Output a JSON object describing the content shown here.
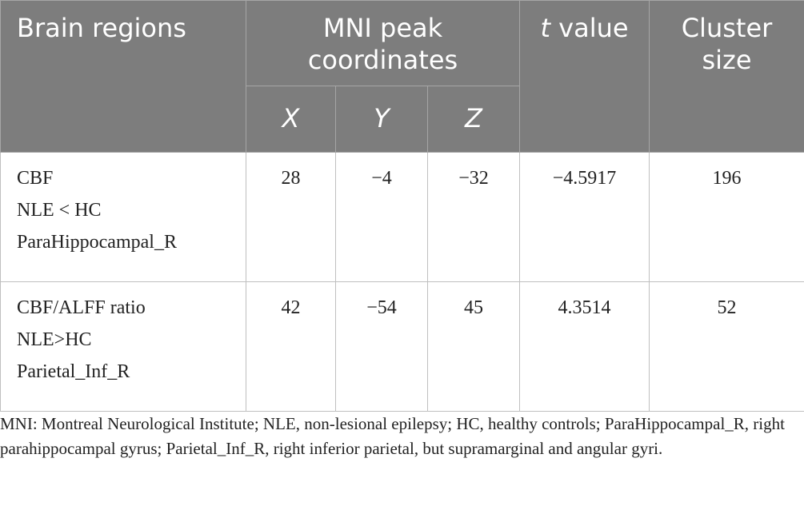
{
  "table": {
    "headers": {
      "brain_regions": "Brain regions",
      "mni_peak_coordinates": "MNI peak coordinates",
      "t_italic": "t",
      "t_rest": " value",
      "cluster_size": "Cluster size",
      "x": "X",
      "y": "Y",
      "z": "Z"
    },
    "rows": [
      {
        "region_lines": [
          "CBF",
          "NLE < HC",
          "ParaHippocampal_R"
        ],
        "x": "28",
        "y": "−4",
        "z": "−32",
        "t_value": "−4.5917",
        "cluster_size": "196"
      },
      {
        "region_lines": [
          "CBF/ALFF ratio",
          "NLE>HC",
          "Parietal_Inf_R"
        ],
        "x": "42",
        "y": "−54",
        "z": "45",
        "t_value": "4.3514",
        "cluster_size": "52"
      }
    ]
  },
  "footnote": "MNI: Montreal Neurological Institute; NLE, non-lesional epilepsy; HC, healthy controls; ParaHippocampal_R, right parahippocampal gyrus; Parietal_Inf_R, right inferior parietal, but supramarginal and angular gyri."
}
